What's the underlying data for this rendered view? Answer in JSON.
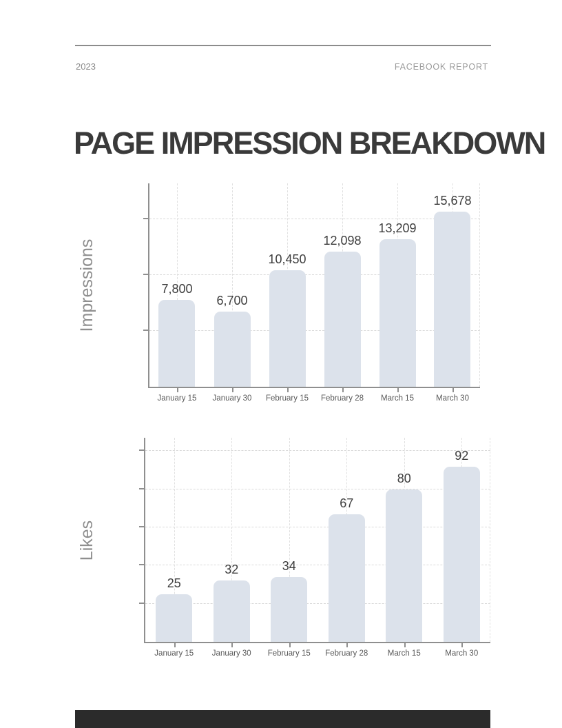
{
  "header": {
    "year": "2023",
    "report_label": "FACEBOOK REPORT"
  },
  "title": "PAGE IMPRESSION BREAKDOWN",
  "colors": {
    "bar_fill": "#dce2eb",
    "h_gridline": "#d9d9d9",
    "v_gridline": "#e0e0e0",
    "axis_line": "#8f8f8f",
    "value_label": "#3d3d3d",
    "category_label": "#595959",
    "axis_title": "#8f8f8f",
    "footer_bar": "#2b2b2b",
    "header_text": "#9b9b9b",
    "title_text": "#3a3a3a"
  },
  "chart_data": [
    {
      "type": "bar",
      "title": "",
      "ylabel": "Impressions",
      "xlabel": "",
      "categories": [
        "January 15",
        "January 30",
        "February 15",
        "February 28",
        "March 15",
        "March 30"
      ],
      "values": [
        7800,
        6700,
        10450,
        12098,
        13209,
        15678
      ],
      "value_labels": [
        "7,800",
        "6,700",
        "10,450",
        "12,098",
        "13,209",
        "15,678"
      ],
      "ylim": [
        0,
        18200
      ],
      "yticks": [
        5000,
        10000,
        15000
      ],
      "grid": "dashed",
      "legend": false
    },
    {
      "type": "bar",
      "title": "",
      "ylabel": "Likes",
      "xlabel": "",
      "categories": [
        "January 15",
        "January 30",
        "February 15",
        "February 28",
        "March 15",
        "March 30"
      ],
      "values": [
        25,
        32,
        34,
        67,
        80,
        92
      ],
      "value_labels": [
        "25",
        "32",
        "34",
        "67",
        "80",
        "92"
      ],
      "ylim": [
        0,
        107
      ],
      "yticks": [
        20,
        40,
        60,
        80,
        100
      ],
      "grid": "dashed",
      "legend": false
    }
  ]
}
